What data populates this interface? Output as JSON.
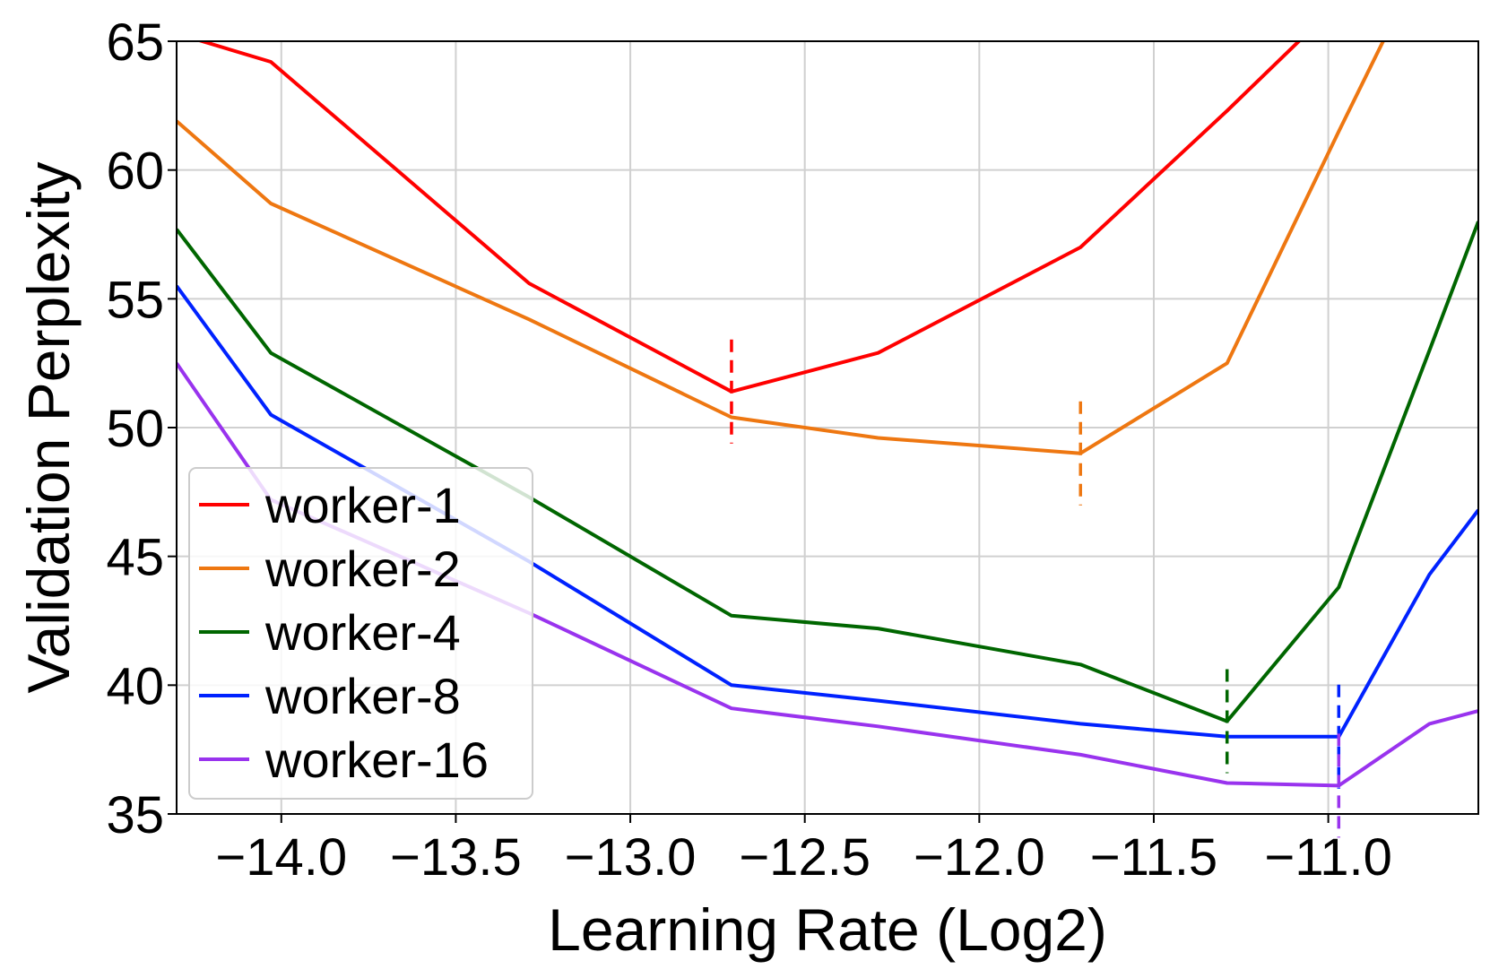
{
  "chart_data": {
    "type": "line",
    "xlabel": "Learning Rate (Log2)",
    "ylabel": "Validation Perplexity",
    "xlim": [
      -14.3,
      -10.57
    ],
    "ylim": [
      35,
      65
    ],
    "xticks": [
      -14.0,
      -13.5,
      -13.0,
      -12.5,
      -12.0,
      -11.5,
      -11.0
    ],
    "xtick_labels": [
      "−14.0",
      "−13.5",
      "−13.0",
      "−12.5",
      "−12.0",
      "−11.5",
      "−11.0"
    ],
    "yticks": [
      35,
      40,
      45,
      50,
      55,
      60,
      65
    ],
    "ytick_labels": [
      "35",
      "40",
      "45",
      "50",
      "55",
      "60",
      "65"
    ],
    "grid": true,
    "legend_position": "lower-left",
    "series": [
      {
        "name": "worker-1",
        "color": "#ff0000",
        "x": [
          -14.3,
          -14.03,
          -13.29,
          -12.71,
          -12.29,
          -11.71,
          -11.29,
          -10.97
        ],
        "y": [
          65.3,
          64.2,
          55.6,
          51.4,
          52.9,
          57.0,
          62.3,
          66.5
        ],
        "optimum": {
          "x": -12.71,
          "y": 51.4
        }
      },
      {
        "name": "worker-2",
        "color": "#ee7711",
        "x": [
          -14.3,
          -14.03,
          -13.29,
          -12.71,
          -12.29,
          -11.71,
          -11.29,
          -10.97,
          -10.77
        ],
        "y": [
          61.9,
          58.7,
          54.2,
          50.4,
          49.6,
          49.0,
          52.5,
          61.5,
          67.0
        ],
        "optimum": {
          "x": -11.71,
          "y": 49.0
        }
      },
      {
        "name": "worker-4",
        "color": "#006600",
        "x": [
          -14.3,
          -14.03,
          -13.29,
          -12.71,
          -12.29,
          -11.71,
          -11.29,
          -10.97,
          -10.71,
          -10.57
        ],
        "y": [
          57.7,
          52.9,
          47.3,
          42.7,
          42.2,
          40.8,
          38.6,
          43.8,
          53.0,
          58.0
        ],
        "optimum": {
          "x": -11.29,
          "y": 38.6
        }
      },
      {
        "name": "worker-8",
        "color": "#0022ff",
        "x": [
          -14.3,
          -14.03,
          -13.29,
          -12.71,
          -12.29,
          -11.71,
          -11.29,
          -10.97,
          -10.71,
          -10.57
        ],
        "y": [
          55.5,
          50.5,
          44.8,
          40.0,
          39.4,
          38.5,
          38.0,
          38.0,
          44.3,
          46.8
        ],
        "optimum": {
          "x": -10.97,
          "y": 38.0
        }
      },
      {
        "name": "worker-16",
        "color": "#9933ee",
        "x": [
          -14.3,
          -14.03,
          -13.29,
          -12.71,
          -12.29,
          -11.71,
          -11.29,
          -10.97,
          -10.71,
          -10.57
        ],
        "y": [
          52.5,
          47.2,
          42.8,
          39.1,
          38.4,
          37.3,
          36.2,
          36.1,
          38.5,
          39.0
        ],
        "optimum": {
          "x": -10.97,
          "y": 36.1
        }
      }
    ]
  }
}
